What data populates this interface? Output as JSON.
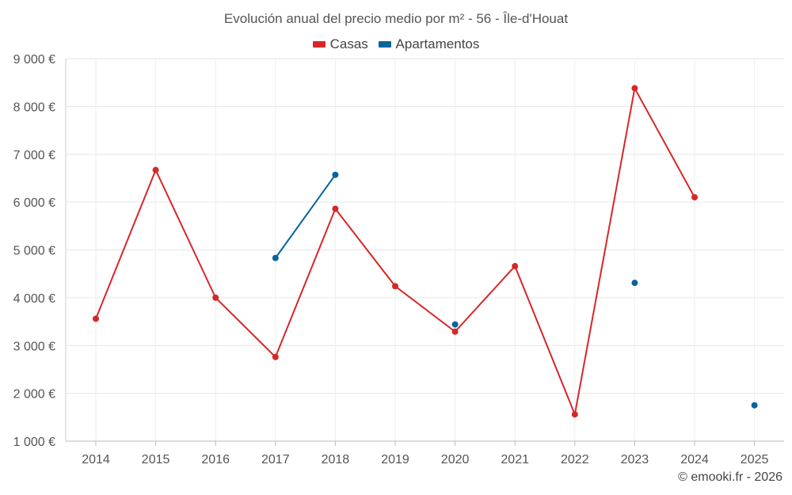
{
  "chart_data": {
    "type": "line",
    "title": "Evolución anual del precio medio por m² - 56 - Île-d'Houat",
    "categories": [
      "2014",
      "2015",
      "2016",
      "2017",
      "2018",
      "2019",
      "2020",
      "2021",
      "2022",
      "2023",
      "2024",
      "2025"
    ],
    "ylim": [
      1000,
      9000
    ],
    "yticks": [
      1000,
      2000,
      3000,
      4000,
      5000,
      6000,
      7000,
      8000,
      9000
    ],
    "ytick_labels": [
      "1 000 €",
      "2 000 €",
      "3 000 €",
      "4 000 €",
      "5 000 €",
      "6 000 €",
      "7 000 €",
      "8 000 €",
      "9 000 €"
    ],
    "grid": true,
    "legend_position": "top-center",
    "series": [
      {
        "name": "Casas",
        "color": "#d62728",
        "values": [
          3560,
          6670,
          4000,
          2760,
          5860,
          4240,
          3290,
          4660,
          1560,
          8380,
          6100,
          null
        ]
      },
      {
        "name": "Apartamentos",
        "color": "#07659c",
        "values": [
          null,
          null,
          null,
          4830,
          6570,
          null,
          3440,
          null,
          null,
          4310,
          null,
          1750
        ]
      }
    ]
  },
  "credit": "© emooki.fr - 2026"
}
